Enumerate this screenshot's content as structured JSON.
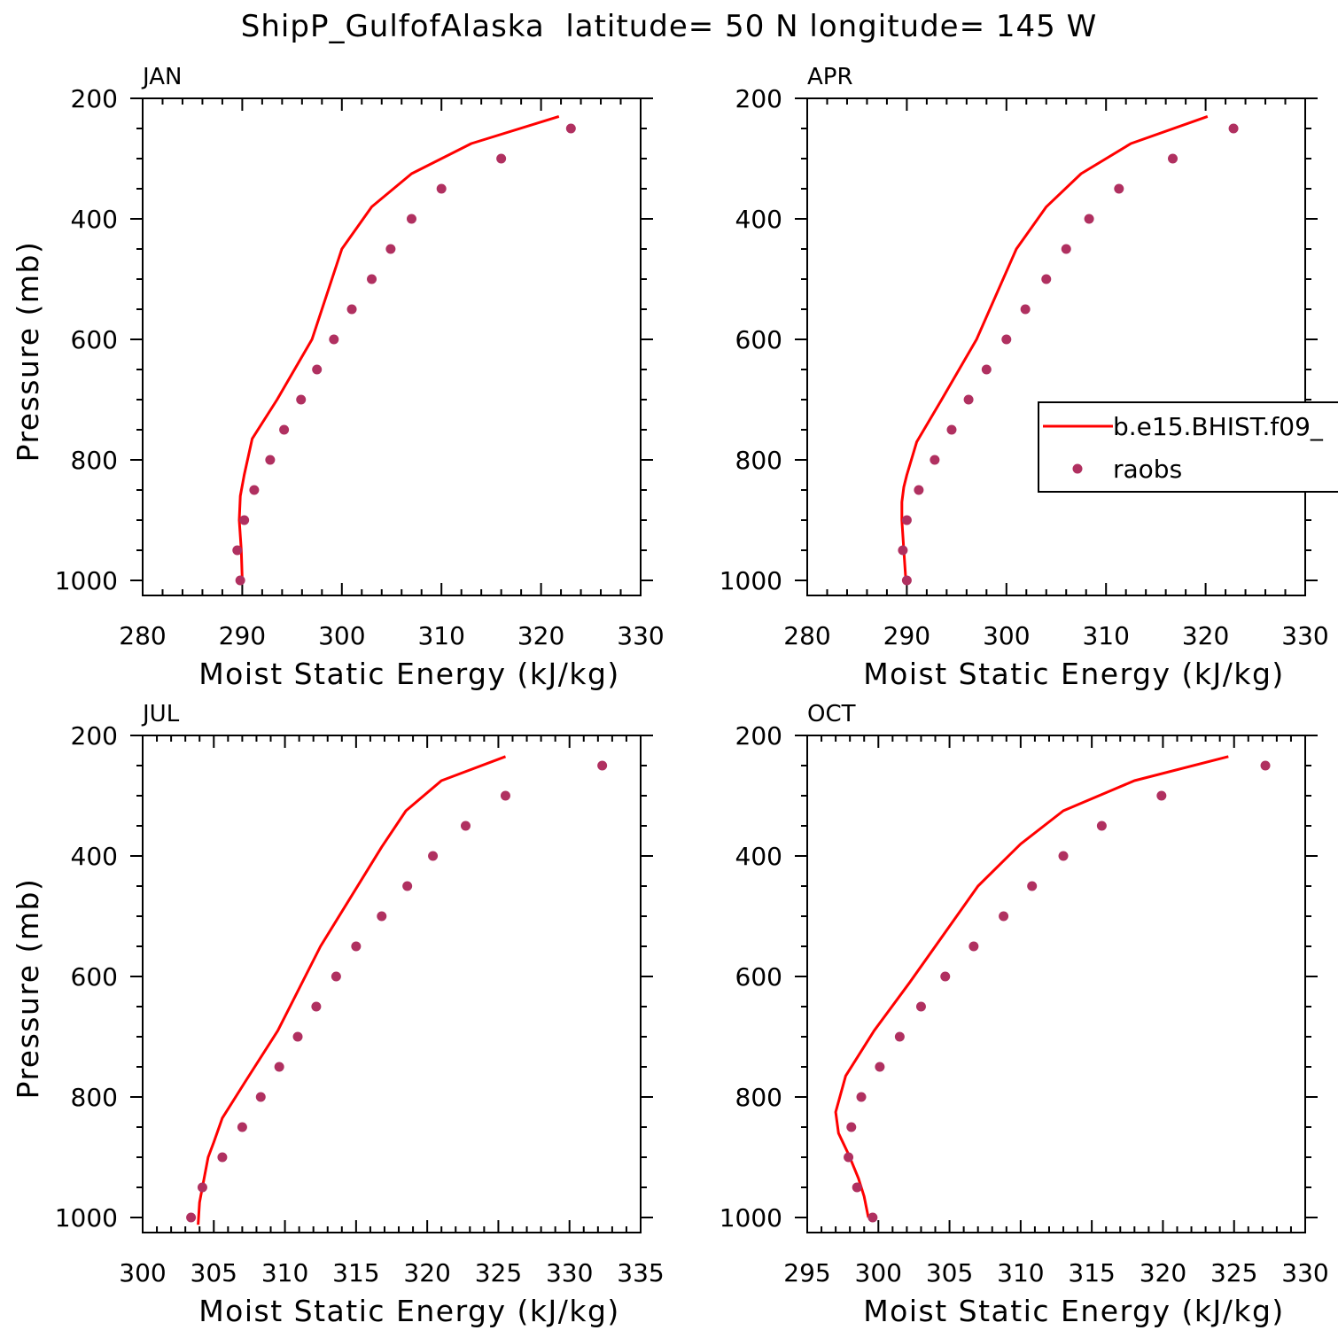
{
  "title": "ShipP_GulfofAlaska  latitude= 50 N longitude= 145 W",
  "legend": {
    "model_label": "b.e15.BHIST.f09_",
    "obs_label": "raobs",
    "placement": "right-middle of APR panel"
  },
  "colors": {
    "model_line": "#ff0000",
    "obs_marker": "#b03060"
  },
  "chart_data": [
    {
      "type": "line",
      "panel_label": "JAN",
      "xlabel": "Moist Static Energy (kJ/kg)",
      "ylabel": "Pressure (mb)",
      "xlim": [
        280,
        330
      ],
      "xticks": [
        280,
        290,
        300,
        310,
        320,
        330
      ],
      "ylim": [
        1025,
        200
      ],
      "yticks": [
        200,
        400,
        600,
        800,
        1000
      ],
      "series": [
        {
          "name": "b.e15.BHIST.f09_",
          "kind": "line",
          "x": [
            290.0,
            289.9,
            289.7,
            289.8,
            290.2,
            291.0,
            293.5,
            297.0,
            300.0,
            303.0,
            307.0,
            313.0,
            321.8
          ],
          "y": [
            1000,
            950,
            900,
            860,
            825,
            765,
            700,
            600,
            450,
            380,
            325,
            275,
            230
          ]
        },
        {
          "name": "raobs",
          "kind": "scatter",
          "x": [
            289.8,
            289.5,
            290.2,
            291.2,
            292.8,
            294.2,
            295.9,
            297.5,
            299.2,
            301.0,
            303.0,
            304.9,
            307.0,
            310.0,
            316.0,
            323.0
          ],
          "y": [
            1000,
            950,
            900,
            850,
            800,
            750,
            700,
            650,
            600,
            550,
            500,
            450,
            400,
            350,
            300,
            250
          ]
        }
      ]
    },
    {
      "type": "line",
      "panel_label": "APR",
      "xlabel": "Moist Static Energy (kJ/kg)",
      "ylabel": "",
      "xlim": [
        280,
        330
      ],
      "xticks": [
        280,
        290,
        300,
        310,
        320,
        330
      ],
      "ylim": [
        1025,
        200
      ],
      "yticks": [
        200,
        400,
        600,
        800,
        1000
      ],
      "series": [
        {
          "name": "b.e15.BHIST.f09_",
          "kind": "line",
          "x": [
            289.9,
            289.7,
            289.5,
            289.5,
            289.7,
            290.0,
            291.0,
            293.5,
            297.0,
            301.0,
            304.0,
            307.5,
            312.5,
            320.2
          ],
          "y": [
            1000,
            950,
            900,
            870,
            845,
            825,
            770,
            700,
            600,
            450,
            380,
            325,
            275,
            230
          ]
        },
        {
          "name": "raobs",
          "kind": "scatter",
          "x": [
            290.0,
            289.6,
            290.0,
            291.2,
            292.8,
            294.5,
            296.2,
            298.0,
            300.0,
            301.9,
            304.0,
            306.0,
            308.3,
            311.3,
            316.7,
            322.8
          ],
          "y": [
            1000,
            950,
            900,
            850,
            800,
            750,
            700,
            650,
            600,
            550,
            500,
            450,
            400,
            350,
            300,
            250
          ]
        }
      ]
    },
    {
      "type": "line",
      "panel_label": "JUL",
      "xlabel": "Moist Static Energy (kJ/kg)",
      "ylabel": "Pressure (mb)",
      "xlim": [
        300,
        335
      ],
      "xticks": [
        300,
        305,
        310,
        315,
        320,
        325,
        330,
        335
      ],
      "ylim": [
        1025,
        200
      ],
      "yticks": [
        200,
        400,
        600,
        800,
        1000
      ],
      "series": [
        {
          "name": "b.e15.BHIST.f09_",
          "kind": "line",
          "x": [
            303.9,
            304.0,
            304.2,
            304.6,
            305.0,
            305.6,
            307.2,
            309.5,
            312.5,
            316.8,
            318.5,
            321.0,
            325.5
          ],
          "y": [
            1012,
            975,
            950,
            900,
            875,
            835,
            775,
            690,
            550,
            385,
            325,
            275,
            235
          ]
        },
        {
          "name": "raobs",
          "kind": "scatter",
          "x": [
            303.4,
            304.2,
            305.6,
            307.0,
            308.3,
            309.6,
            310.9,
            312.2,
            313.6,
            315.0,
            316.8,
            318.6,
            320.4,
            322.7,
            325.5,
            332.3
          ],
          "y": [
            1000,
            950,
            900,
            850,
            800,
            750,
            700,
            650,
            600,
            550,
            500,
            450,
            400,
            350,
            300,
            250
          ]
        }
      ]
    },
    {
      "type": "line",
      "panel_label": "OCT",
      "xlabel": "Moist Static Energy (kJ/kg)",
      "ylabel": "",
      "xlim": [
        295,
        330
      ],
      "xticks": [
        295,
        300,
        305,
        310,
        315,
        320,
        325,
        330
      ],
      "ylim": [
        1025,
        200
      ],
      "yticks": [
        200,
        400,
        600,
        800,
        1000
      ],
      "series": [
        {
          "name": "b.e15.BHIST.f09_",
          "kind": "line",
          "x": [
            299.3,
            299.0,
            298.6,
            297.9,
            297.2,
            297.0,
            297.7,
            299.7,
            302.2,
            307.0,
            310.0,
            313.0,
            318.0,
            324.6
          ],
          "y": [
            1000,
            965,
            935,
            895,
            860,
            825,
            765,
            690,
            610,
            450,
            380,
            325,
            275,
            235
          ]
        },
        {
          "name": "raobs",
          "kind": "scatter",
          "x": [
            299.6,
            298.5,
            297.9,
            298.1,
            298.8,
            300.1,
            301.5,
            303.0,
            304.7,
            306.7,
            308.8,
            310.8,
            313.0,
            315.7,
            319.9,
            327.2
          ],
          "y": [
            1000,
            950,
            900,
            850,
            800,
            750,
            700,
            650,
            600,
            550,
            500,
            450,
            400,
            350,
            300,
            250
          ]
        }
      ]
    }
  ]
}
